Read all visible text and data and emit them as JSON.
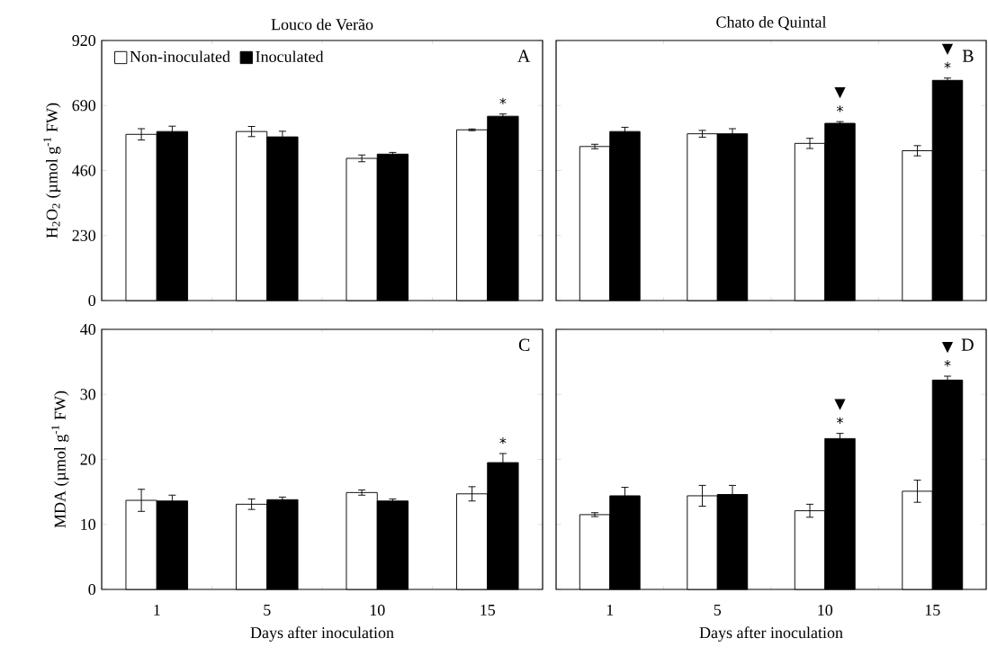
{
  "chart_data": [
    {
      "type": "bar",
      "title": "Louco de Verão",
      "ylabel": "H$_{2}$O$_{2}$ (µmol g$^{-1}$ FW)",
      "categories": [
        "1",
        "5",
        "10",
        "15"
      ],
      "ylim": [
        0,
        920
      ],
      "yticks": [
        0,
        230,
        460,
        690,
        920
      ],
      "tick_labels": "y",
      "legend": "top left",
      "series": [
        {
          "name": "Non-inoculated",
          "color": "#ffffff",
          "values": [
            588,
            598,
            503,
            604
          ],
          "errors": [
            20,
            18,
            12,
            3
          ]
        },
        {
          "name": "Inoculated",
          "color": "#000000",
          "values": [
            598,
            579,
            518,
            652
          ],
          "errors": [
            19,
            20,
            6,
            8
          ]
        }
      ],
      "annotations": [
        "A",
        {
          "text": "*",
          "x": "15",
          "y": 652
        }
      ]
    },
    {
      "type": "bar",
      "title": "Chato de Quintal",
      "categories": [
        "1",
        "5",
        "10",
        "15"
      ],
      "ylim": [
        0,
        920
      ],
      "yticks": [
        0,
        230,
        460,
        690,
        920
      ],
      "tick_labels": false,
      "series": [
        {
          "color": "#ffffff",
          "values": [
            545,
            590,
            556,
            530
          ],
          "errors": [
            8,
            12,
            18,
            18
          ]
        },
        {
          "color": "#000000",
          "values": [
            598,
            590,
            627,
            779
          ],
          "errors": [
            15,
            18,
            6,
            8
          ]
        }
      ],
      "annotations": [
        "B",
        {
          "text": "*",
          "x": "10",
          "y": 627
        },
        {
          "text": "▼",
          "x": "10",
          "y": 627
        },
        {
          "text": "*",
          "x": "15",
          "y": 779
        },
        {
          "text": "▼",
          "x": "15",
          "y": 779
        }
      ]
    },
    {
      "type": "bar",
      "xlabel": "Days after inoculation",
      "ylabel": "MDA (µmol g$^{-1}$ FW)",
      "categories": [
        "1",
        "5",
        "10",
        "15"
      ],
      "ylim": [
        0,
        40
      ],
      "yticks": [
        0,
        10,
        20,
        30,
        40
      ],
      "series": [
        {
          "color": "#ffffff",
          "values": [
            13.7,
            13.1,
            14.9,
            14.7
          ],
          "errors": [
            1.7,
            0.8,
            0.4,
            1.1
          ]
        },
        {
          "color": "#000000",
          "values": [
            13.6,
            13.8,
            13.6,
            19.5
          ],
          "errors": [
            0.9,
            0.4,
            0.3,
            1.4
          ]
        }
      ],
      "annotations": [
        "C",
        {
          "text": "*",
          "x": "15",
          "y": 19.5
        }
      ]
    },
    {
      "type": "bar",
      "xlabel": "Days after inoculation",
      "categories": [
        "1",
        "5",
        "10",
        "15"
      ],
      "ylim": [
        0,
        40
      ],
      "yticks": [
        0,
        10,
        20,
        30,
        40
      ],
      "tick_labels": "x",
      "series": [
        {
          "color": "#ffffff",
          "values": [
            11.5,
            14.4,
            12.1,
            15.1
          ],
          "errors": [
            0.3,
            1.6,
            1.0,
            1.7
          ]
        },
        {
          "color": "#000000",
          "values": [
            14.4,
            14.6,
            23.2,
            32.2
          ],
          "errors": [
            1.3,
            1.4,
            0.8,
            0.6
          ]
        }
      ],
      "annotations": [
        "D",
        {
          "text": "*",
          "x": "10",
          "y": 23.2
        },
        {
          "text": "▼",
          "x": "10",
          "y": 23.2
        },
        {
          "text": "*",
          "x": "15",
          "y": 32.2
        },
        {
          "text": "▼",
          "x": "15",
          "y": 32.2
        }
      ]
    }
  ]
}
